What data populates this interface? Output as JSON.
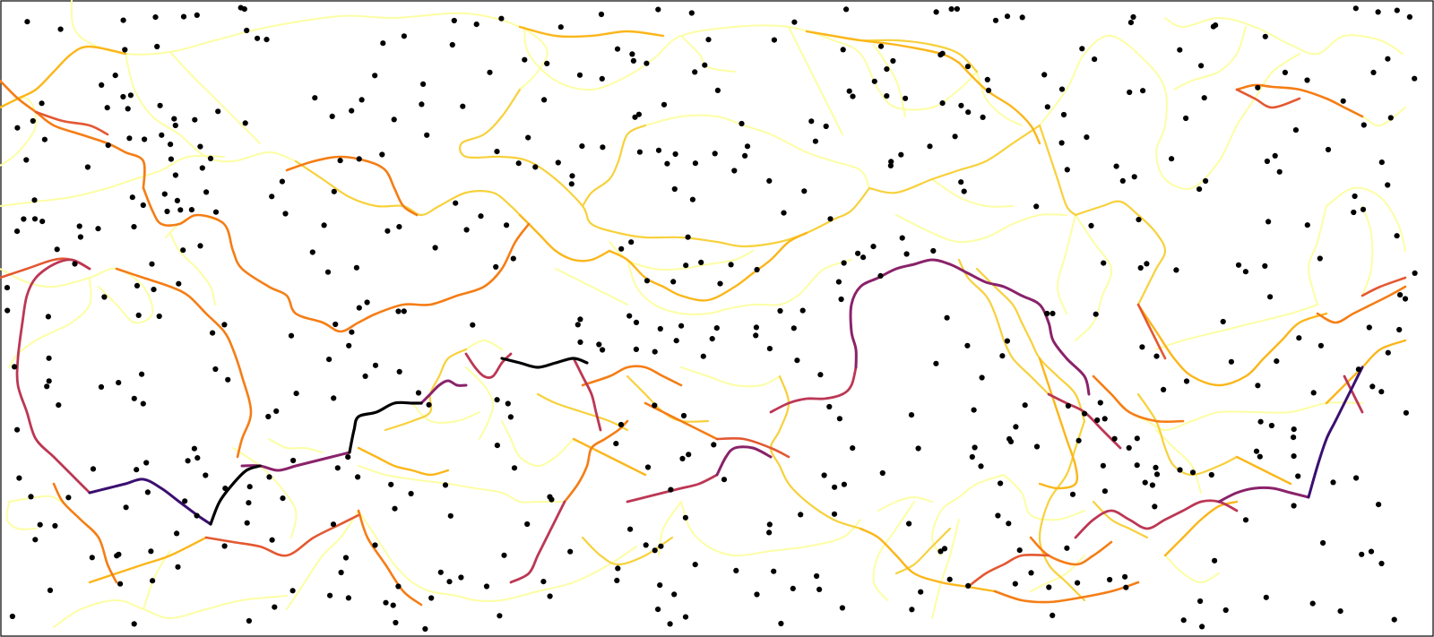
{
  "diagram": {
    "type": "boundary-network-with-sites",
    "colormap": "inferno",
    "background": "#ffffff",
    "frame_color": "#000000",
    "site_color": "#000000",
    "palette": {
      "l0": "#fcfea4",
      "l1": "#f7d13c",
      "l2": "#fbb61a",
      "l3": "#f57d15",
      "l4": "#e35832",
      "l5": "#bc3754",
      "l6": "#8a226a",
      "l7": "#3b0f70",
      "l8": "#000004"
    }
  }
}
